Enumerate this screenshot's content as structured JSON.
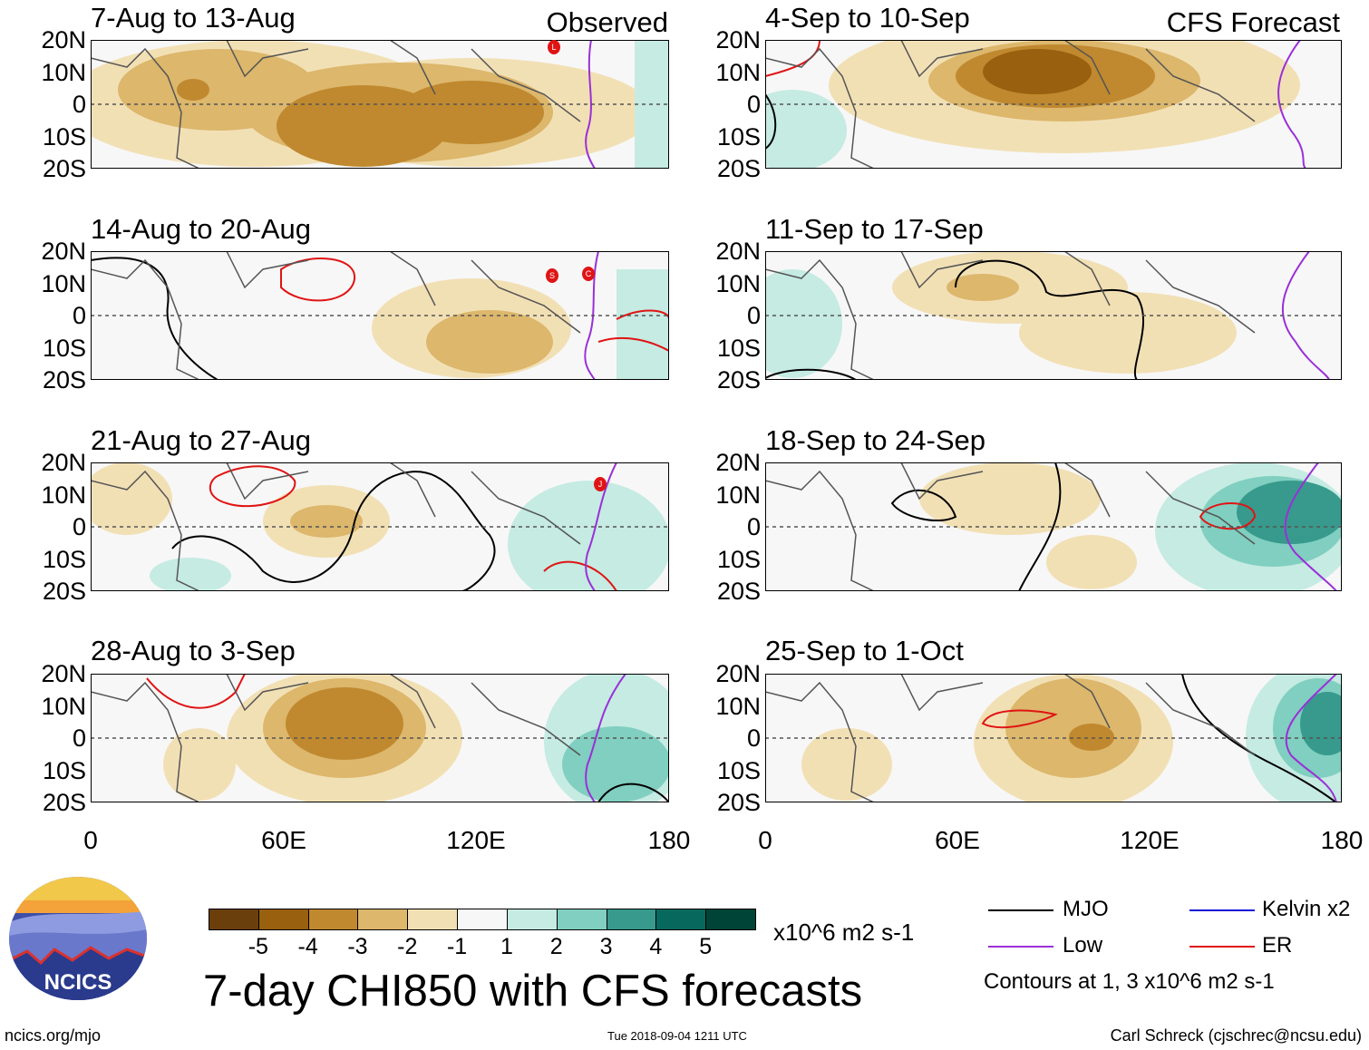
{
  "header": {
    "observed_label": "Observed",
    "forecast_label": "CFS Forecast"
  },
  "colors": {
    "dry": [
      "#6b3f0c",
      "#98600f",
      "#c0892f",
      "#dcb76c",
      "#f2e0b5"
    ],
    "neutral": "#f7f7f7",
    "wet": [
      "#c5ebe2",
      "#80cfc0",
      "#379a8c",
      "#07695e",
      "#004437"
    ],
    "mjo": "#000000",
    "low": "#9a30d8",
    "kelvin": "#1414d8",
    "er": "#e01414"
  },
  "panels": [
    {
      "title": "7-Aug to 13-Aug",
      "column": "observed",
      "tc_marker_labels": [
        "L"
      ]
    },
    {
      "title": "14-Aug to 20-Aug",
      "column": "observed",
      "tc_marker_labels": [
        "S",
        "C"
      ]
    },
    {
      "title": "21-Aug to 27-Aug",
      "column": "observed",
      "tc_marker_labels": [
        "J"
      ]
    },
    {
      "title": "28-Aug to 3-Sep",
      "column": "observed",
      "tc_marker_labels": []
    },
    {
      "title": "4-Sep to 10-Sep",
      "column": "forecast",
      "tc_marker_labels": []
    },
    {
      "title": "11-Sep to 17-Sep",
      "column": "forecast",
      "tc_marker_labels": []
    },
    {
      "title": "18-Sep to 24-Sep",
      "column": "forecast",
      "tc_marker_labels": []
    },
    {
      "title": "25-Sep to 1-Oct",
      "column": "forecast",
      "tc_marker_labels": []
    }
  ],
  "axes": {
    "lat_labels": [
      "20N",
      "10N",
      "0",
      "10S",
      "20S"
    ],
    "lon_labels": [
      "0",
      "60E",
      "120E",
      "180"
    ],
    "lat_range": [
      -20,
      20
    ],
    "lon_range": [
      0,
      180
    ]
  },
  "colorbar": {
    "tick_labels": [
      "-5",
      "-4",
      "-3",
      "-2",
      "-1",
      "1",
      "2",
      "3",
      "4",
      "5"
    ],
    "units": "x10^6 m2 s-1"
  },
  "main_title": "7-day CHI850 with CFS forecasts",
  "legend": {
    "items": [
      {
        "label": "MJO",
        "color_key": "mjo"
      },
      {
        "label": "Kelvin x2",
        "color_key": "kelvin"
      },
      {
        "label": "Low",
        "color_key": "low"
      },
      {
        "label": "ER",
        "color_key": "er"
      }
    ],
    "contour_note": "Contours at 1, 3 x10^6 m2 s-1"
  },
  "logo": {
    "text": "NCICS"
  },
  "footer": {
    "url": "ncics.org/mjo",
    "timestamp": "Tue 2018-09-04 1211 UTC",
    "credit": "Carl Schreck (cjschrec@ncsu.edu)"
  }
}
